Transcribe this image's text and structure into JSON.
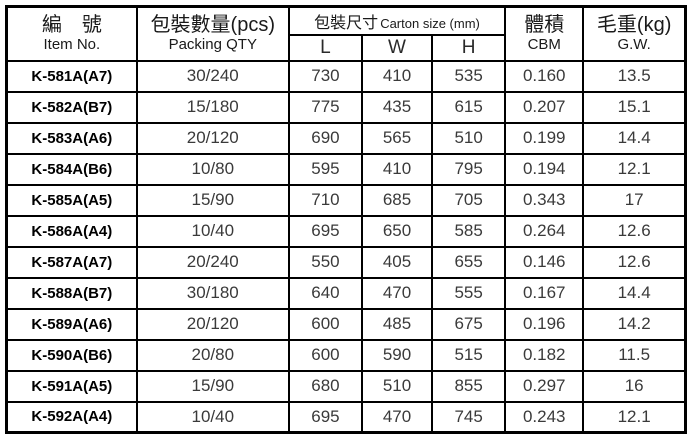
{
  "table": {
    "headers": {
      "item_cn": "編　號",
      "item_en": "Item No.",
      "qty_cn": "包裝數量(pcs)",
      "qty_en": "Packing QTY",
      "carton_cn": "包裝尺寸",
      "carton_en": "Carton size (mm)",
      "l": "L",
      "w": "W",
      "h": "H",
      "cbm_cn": "體積",
      "cbm_en": "CBM",
      "gw_cn": "毛重(kg)",
      "gw_en": "G.W."
    },
    "rows": [
      {
        "item": "K-581A(A7)",
        "qty": "30/240",
        "l": "730",
        "w": "410",
        "h": "535",
        "cbm": "0.160",
        "gw": "13.5"
      },
      {
        "item": "K-582A(B7)",
        "qty": "15/180",
        "l": "775",
        "w": "435",
        "h": "615",
        "cbm": "0.207",
        "gw": "15.1"
      },
      {
        "item": "K-583A(A6)",
        "qty": "20/120",
        "l": "690",
        "w": "565",
        "h": "510",
        "cbm": "0.199",
        "gw": "14.4"
      },
      {
        "item": "K-584A(B6)",
        "qty": "10/80",
        "l": "595",
        "w": "410",
        "h": "795",
        "cbm": "0.194",
        "gw": "12.1"
      },
      {
        "item": "K-585A(A5)",
        "qty": "15/90",
        "l": "710",
        "w": "685",
        "h": "705",
        "cbm": "0.343",
        "gw": "17"
      },
      {
        "item": "K-586A(A4)",
        "qty": "10/40",
        "l": "695",
        "w": "650",
        "h": "585",
        "cbm": "0.264",
        "gw": "12.6"
      },
      {
        "item": "K-587A(A7)",
        "qty": "20/240",
        "l": "550",
        "w": "405",
        "h": "655",
        "cbm": "0.146",
        "gw": "12.6"
      },
      {
        "item": "K-588A(B7)",
        "qty": "30/180",
        "l": "640",
        "w": "470",
        "h": "555",
        "cbm": "0.167",
        "gw": "14.4"
      },
      {
        "item": "K-589A(A6)",
        "qty": "20/120",
        "l": "600",
        "w": "485",
        "h": "675",
        "cbm": "0.196",
        "gw": "14.2"
      },
      {
        "item": "K-590A(B6)",
        "qty": "20/80",
        "l": "600",
        "w": "590",
        "h": "515",
        "cbm": "0.182",
        "gw": "11.5"
      },
      {
        "item": "K-591A(A5)",
        "qty": "15/90",
        "l": "680",
        "w": "510",
        "h": "855",
        "cbm": "0.297",
        "gw": "16"
      },
      {
        "item": "K-592A(A4)",
        "qty": "10/40",
        "l": "695",
        "w": "470",
        "h": "745",
        "cbm": "0.243",
        "gw": "12.1"
      }
    ]
  },
  "colors": {
    "border": "#000000",
    "background": "#ffffff",
    "data_text": "#3a3a3a",
    "item_text": "#000000"
  }
}
